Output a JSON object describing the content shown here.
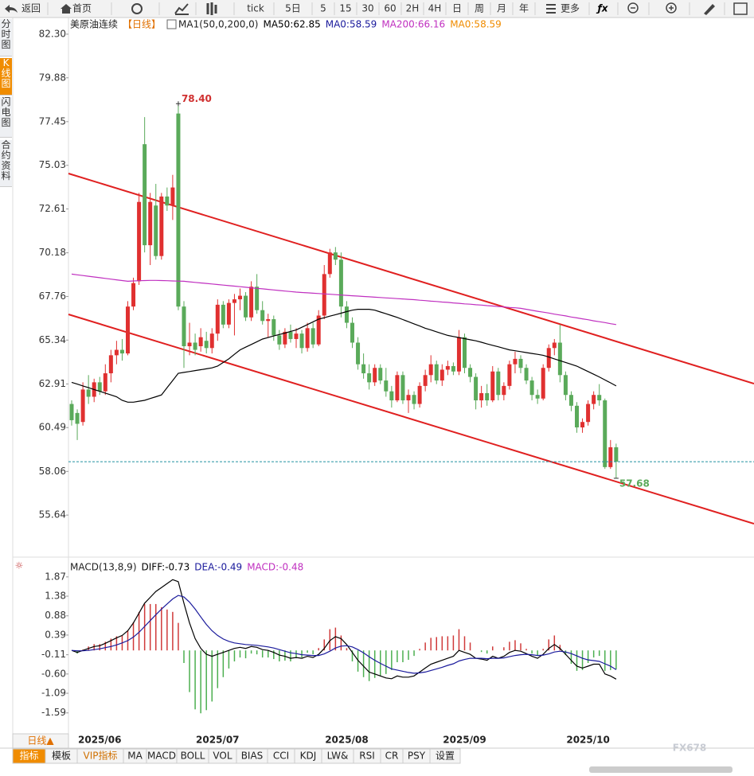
{
  "toolbar": [
    "返回",
    "首页",
    "tick",
    "5日",
    "5",
    "15",
    "30",
    "60",
    "2H",
    "4H",
    "日",
    "周",
    "月",
    "年",
    "更多"
  ],
  "side_tabs": [
    "分时图",
    "K线图",
    "闪电图",
    "合约资料"
  ],
  "period_button": "日线▲",
  "bottom_tabs": [
    "指标",
    "模板",
    "VIP指标",
    "MA",
    "MACD",
    "BOLL",
    "VOL",
    "BIAS",
    "CCI",
    "KDJ",
    "LW&",
    "RSI",
    "CR",
    "PSY",
    "设置"
  ],
  "watermark": "FX678",
  "chart_data": [
    {
      "type": "candlestick",
      "title": "美原油连续",
      "period": "【日线】",
      "indicator": "MA1(50,0,200,0)",
      "legend": [
        {
          "label": "MA50:62.85",
          "color": "#000000"
        },
        {
          "label": "MA0:58.59",
          "color": "#1a1a9c"
        },
        {
          "label": "MA200:66.16",
          "color": "#c030c0"
        },
        {
          "label": "MA0:58.59",
          "color": "#f08c00"
        }
      ],
      "up_color": "#e03030",
      "down_color": "#5aaa5a",
      "high_label": "78.40",
      "low_label": "57.68",
      "categories": [
        null,
        null,
        null,
        null,
        null,
        "2025/06",
        null,
        null,
        null,
        null,
        null,
        null,
        null,
        null,
        null,
        null,
        null,
        null,
        null,
        null,
        null,
        null,
        null,
        null,
        null,
        null,
        "2025/07",
        null,
        null,
        null,
        null,
        null,
        null,
        null,
        null,
        null,
        null,
        null,
        null,
        null,
        null,
        null,
        null,
        null,
        null,
        null,
        null,
        null,
        null,
        "2025/08",
        null,
        null,
        null,
        null,
        null,
        null,
        null,
        null,
        null,
        null,
        null,
        null,
        null,
        null,
        null,
        null,
        null,
        null,
        null,
        null,
        "2025/09",
        null,
        null,
        null,
        null,
        null,
        null,
        null,
        null,
        null,
        null,
        null,
        null,
        null,
        null,
        null,
        null,
        null,
        null,
        null,
        null,
        null,
        "2025/10",
        null,
        null,
        null,
        null,
        null
      ],
      "open": [
        61.8,
        61.3,
        60.8,
        62.6,
        62.2,
        63.0,
        62.5,
        63.5,
        64.5,
        64.8,
        64.6,
        67.2,
        68.6,
        76.2,
        70.6,
        72.8,
        70.0,
        73.3,
        72.8,
        77.9,
        67.2,
        65.0,
        65.2,
        65.0,
        65.3,
        64.9,
        65.7,
        67.3,
        66.2,
        67.4,
        67.6,
        67.8,
        66.6,
        68.3,
        67.0,
        66.4,
        66.5,
        65.6,
        65.1,
        65.8,
        65.4,
        65.7,
        64.9,
        66.0,
        65.1,
        66.7,
        69.0,
        70.2,
        69.8,
        67.2,
        66.3,
        65.2,
        64.0,
        63.5,
        63.0,
        63.8,
        63.1,
        62.5,
        62.0,
        63.4,
        62.0,
        62.3,
        61.8,
        62.8,
        63.4,
        64.0,
        63.1,
        63.7,
        63.9,
        63.6,
        65.5,
        63.8,
        63.3,
        62.0,
        62.4,
        62.0,
        63.6,
        62.3,
        62.8,
        64.0,
        64.3,
        63.8,
        63.1,
        62.3,
        62.1,
        63.8,
        64.9,
        65.2,
        63.4,
        62.3,
        61.7,
        60.5,
        60.8,
        61.8,
        62.3,
        62.0,
        58.3,
        59.4
      ],
      "high": [
        62.0,
        61.5,
        63.0,
        63.4,
        63.2,
        63.3,
        64.0,
        64.8,
        65.3,
        65.4,
        67.5,
        68.8,
        73.5,
        77.7,
        73.5,
        74.0,
        73.5,
        73.8,
        74.5,
        78.4,
        67.5,
        66.3,
        65.7,
        66.0,
        65.8,
        66.0,
        67.6,
        67.5,
        67.6,
        67.9,
        68.2,
        68.0,
        68.6,
        69.0,
        67.5,
        66.8,
        66.7,
        65.9,
        66.0,
        66.2,
        66.0,
        65.9,
        66.3,
        66.3,
        67.0,
        69.5,
        70.4,
        70.5,
        70.2,
        67.5,
        66.6,
        65.5,
        64.6,
        64.0,
        64.0,
        64.0,
        63.8,
        62.8,
        63.6,
        63.6,
        62.6,
        62.5,
        63.0,
        63.7,
        64.5,
        64.2,
        64.0,
        64.2,
        64.1,
        65.9,
        65.7,
        64.0,
        63.5,
        62.8,
        62.9,
        63.9,
        63.8,
        63.0,
        64.2,
        64.7,
        64.5,
        64.0,
        63.3,
        62.6,
        64.0,
        65.1,
        65.4,
        66.2,
        63.6,
        62.5,
        61.9,
        61.0,
        62.0,
        62.5,
        62.9,
        62.1,
        59.8,
        59.6
      ],
      "low": [
        60.6,
        59.8,
        60.6,
        61.8,
        61.9,
        62.3,
        62.3,
        63.0,
        64.0,
        64.2,
        64.5,
        67.0,
        68.4,
        70.2,
        69.5,
        69.8,
        69.8,
        72.5,
        72.0,
        67.0,
        63.8,
        64.5,
        64.5,
        64.7,
        64.6,
        64.6,
        65.3,
        66.0,
        66.0,
        65.6,
        67.0,
        66.4,
        66.4,
        66.8,
        66.2,
        65.5,
        65.3,
        64.8,
        64.9,
        65.2,
        64.9,
        64.6,
        64.7,
        64.9,
        65.0,
        66.5,
        68.8,
        69.5,
        66.6,
        66.0,
        64.9,
        63.7,
        63.2,
        62.6,
        62.8,
        62.9,
        62.2,
        61.6,
        61.9,
        61.8,
        61.3,
        61.5,
        61.6,
        62.5,
        63.0,
        62.9,
        62.8,
        63.4,
        63.4,
        63.4,
        63.5,
        63.0,
        61.5,
        61.6,
        61.7,
        61.9,
        62.0,
        62.0,
        62.6,
        63.5,
        63.5,
        62.9,
        62.0,
        61.8,
        62.0,
        63.6,
        64.5,
        63.0,
        62.0,
        61.4,
        60.2,
        60.2,
        60.6,
        61.5,
        61.7,
        58.2,
        58.2,
        57.68
      ],
      "close": [
        60.9,
        60.7,
        62.6,
        62.2,
        63.0,
        62.5,
        63.5,
        64.5,
        64.8,
        64.6,
        67.2,
        68.5,
        73.0,
        70.6,
        73.0,
        70.0,
        73.3,
        72.8,
        73.8,
        67.2,
        65.0,
        65.2,
        64.8,
        65.5,
        64.9,
        65.7,
        67.3,
        66.2,
        67.4,
        67.6,
        67.8,
        66.6,
        68.3,
        67.0,
        66.4,
        66.5,
        65.6,
        65.1,
        65.8,
        65.4,
        65.7,
        64.9,
        66.0,
        65.1,
        66.7,
        69.0,
        70.2,
        69.8,
        67.2,
        66.3,
        65.2,
        64.0,
        63.5,
        63.0,
        63.8,
        63.1,
        62.5,
        62.0,
        63.4,
        62.0,
        62.3,
        61.8,
        62.8,
        63.4,
        64.0,
        63.1,
        63.7,
        63.9,
        63.6,
        65.5,
        63.8,
        63.3,
        62.0,
        62.4,
        62.0,
        63.6,
        62.3,
        62.8,
        64.0,
        64.3,
        63.8,
        63.1,
        62.3,
        62.1,
        63.8,
        64.9,
        65.2,
        63.4,
        62.3,
        61.7,
        60.5,
        60.8,
        61.8,
        62.3,
        62.0,
        58.3,
        59.4,
        58.6
      ],
      "lines": [
        {
          "color": "#000000",
          "values": [
            63.0,
            62.9,
            62.8,
            62.7,
            62.6,
            62.5,
            62.4,
            62.3,
            62.2,
            62.0,
            61.9,
            61.9,
            61.95,
            62.0,
            62.1,
            62.2,
            62.3,
            62.7,
            63.1,
            63.5,
            63.55,
            63.6,
            63.65,
            63.7,
            63.75,
            63.8,
            63.9,
            64.1,
            64.3,
            64.55,
            64.8,
            64.95,
            65.1,
            65.25,
            65.4,
            65.48,
            65.57,
            65.65,
            65.73,
            65.82,
            65.9,
            66.05,
            66.2,
            66.35,
            66.5,
            66.58,
            66.67,
            66.75,
            66.83,
            66.92,
            67.0,
            67.05,
            67.05,
            67.05,
            67.0,
            66.9,
            66.8,
            66.7,
            66.6,
            66.48,
            66.36,
            66.24,
            66.12,
            66.0,
            65.9,
            65.8,
            65.7,
            65.6,
            65.54,
            65.48,
            65.42,
            65.36,
            65.3,
            65.22,
            65.13,
            65.05,
            64.97,
            64.88,
            64.8,
            64.75,
            64.7,
            64.65,
            64.6,
            64.55,
            64.5,
            64.4,
            64.3,
            64.2,
            64.1,
            64.0,
            63.9,
            63.75,
            63.6,
            63.45,
            63.3,
            63.13,
            62.97,
            62.8
          ]
        },
        {
          "color": "#c030c0",
          "values": [
            69.0,
            68.96,
            68.92,
            68.88,
            68.84,
            68.8,
            68.76,
            68.72,
            68.68,
            68.64,
            68.6,
            68.62,
            68.63,
            68.64,
            68.65,
            68.65,
            68.64,
            68.63,
            68.62,
            68.61,
            68.6,
            68.57,
            68.54,
            68.51,
            68.48,
            68.45,
            68.42,
            68.39,
            68.36,
            68.33,
            68.3,
            68.27,
            68.24,
            68.21,
            68.18,
            68.15,
            68.12,
            68.09,
            68.06,
            68.03,
            68.0,
            67.98,
            67.96,
            67.94,
            67.92,
            67.9,
            67.88,
            67.86,
            67.84,
            67.82,
            67.8,
            67.78,
            67.76,
            67.74,
            67.72,
            67.7,
            67.68,
            67.66,
            67.64,
            67.62,
            67.6,
            67.58,
            67.55,
            67.53,
            67.5,
            67.48,
            67.45,
            67.43,
            67.4,
            67.38,
            67.35,
            67.33,
            67.3,
            67.28,
            67.25,
            67.23,
            67.2,
            67.18,
            67.15,
            67.13,
            67.1,
            67.05,
            66.99,
            66.94,
            66.89,
            66.84,
            66.78,
            66.73,
            66.68,
            66.62,
            66.57,
            66.52,
            66.47,
            66.41,
            66.36,
            66.31,
            66.25,
            66.2
          ]
        }
      ],
      "ylim": [
        53.75,
        82.87
      ],
      "yticks": [
        {
          "value": 82.3,
          "label": "82.30"
        },
        79.88,
        77.45,
        75.03,
        72.61,
        70.18,
        67.76,
        65.34,
        62.91,
        60.49,
        58.06,
        55.64
      ]
    },
    {
      "type": "macd",
      "title": "MACD(13,8,9)",
      "legend": [
        {
          "label": "DIFF:-0.73",
          "color": "#000000"
        },
        {
          "label": "DEA:-0.49",
          "color": "#1a1a9c"
        },
        {
          "label": "MACD:-0.48",
          "color": "#c030c0"
        }
      ],
      "up_color": "#d03a3a",
      "down_color": "#4caf50",
      "diff_color": "#000000",
      "dea_color": "#1a1a9c",
      "diff": [
        0.0,
        -0.05,
        0.0,
        0.05,
        0.1,
        0.12,
        0.18,
        0.25,
        0.32,
        0.38,
        0.5,
        0.7,
        0.95,
        1.2,
        1.35,
        1.5,
        1.6,
        1.7,
        1.8,
        1.75,
        1.2,
        0.7,
        0.3,
        0.05,
        -0.1,
        -0.15,
        -0.1,
        -0.05,
        0.0,
        0.05,
        0.08,
        0.05,
        0.1,
        0.08,
        0.02,
        0.0,
        -0.05,
        -0.12,
        -0.15,
        -0.2,
        -0.18,
        -0.2,
        -0.15,
        -0.18,
        -0.1,
        0.05,
        0.25,
        0.35,
        0.3,
        0.15,
        -0.05,
        -0.25,
        -0.4,
        -0.55,
        -0.6,
        -0.65,
        -0.7,
        -0.72,
        -0.65,
        -0.68,
        -0.68,
        -0.65,
        -0.55,
        -0.45,
        -0.35,
        -0.3,
        -0.25,
        -0.2,
        -0.15,
        0.0,
        -0.05,
        -0.1,
        -0.2,
        -0.22,
        -0.25,
        -0.15,
        -0.2,
        -0.15,
        -0.05,
        0.0,
        -0.02,
        -0.08,
        -0.15,
        -0.2,
        -0.1,
        0.05,
        0.15,
        0.05,
        -0.1,
        -0.25,
        -0.4,
        -0.45,
        -0.4,
        -0.35,
        -0.35,
        -0.6,
        -0.65,
        -0.73
      ],
      "dea": [
        0.0,
        -0.01,
        -0.01,
        0.0,
        0.02,
        0.04,
        0.07,
        0.1,
        0.14,
        0.19,
        0.25,
        0.34,
        0.46,
        0.61,
        0.76,
        0.91,
        1.05,
        1.18,
        1.31,
        1.4,
        1.36,
        1.23,
        1.05,
        0.85,
        0.66,
        0.5,
        0.38,
        0.29,
        0.23,
        0.19,
        0.17,
        0.15,
        0.14,
        0.13,
        0.11,
        0.09,
        0.06,
        0.02,
        -0.02,
        -0.06,
        -0.08,
        -0.11,
        -0.12,
        -0.13,
        -0.13,
        -0.09,
        -0.02,
        0.06,
        0.11,
        0.12,
        0.09,
        0.02,
        -0.06,
        -0.16,
        -0.25,
        -0.33,
        -0.4,
        -0.47,
        -0.5,
        -0.53,
        -0.56,
        -0.58,
        -0.57,
        -0.55,
        -0.51,
        -0.47,
        -0.43,
        -0.38,
        -0.34,
        -0.27,
        -0.23,
        -0.2,
        -0.2,
        -0.2,
        -0.21,
        -0.2,
        -0.2,
        -0.19,
        -0.16,
        -0.13,
        -0.11,
        -0.1,
        -0.11,
        -0.13,
        -0.12,
        -0.09,
        -0.04,
        -0.02,
        -0.04,
        -0.08,
        -0.14,
        -0.2,
        -0.24,
        -0.26,
        -0.28,
        -0.34,
        -0.4,
        -0.49
      ],
      "hist": [
        0.0,
        -0.08,
        0.02,
        0.1,
        0.16,
        0.16,
        0.22,
        0.3,
        0.36,
        0.38,
        0.5,
        0.72,
        0.98,
        1.18,
        1.18,
        1.18,
        1.1,
        1.04,
        0.98,
        0.7,
        -0.32,
        -1.06,
        -1.5,
        -1.6,
        -1.52,
        -1.3,
        -0.96,
        -0.68,
        -0.46,
        -0.28,
        -0.18,
        -0.2,
        -0.08,
        -0.1,
        -0.18,
        -0.18,
        -0.22,
        -0.28,
        -0.26,
        -0.28,
        -0.2,
        -0.18,
        -0.06,
        -0.1,
        0.06,
        0.28,
        0.54,
        0.58,
        0.38,
        0.06,
        -0.28,
        -0.54,
        -0.68,
        -0.78,
        -0.7,
        -0.64,
        -0.6,
        -0.5,
        -0.3,
        -0.3,
        -0.24,
        -0.14,
        0.04,
        0.2,
        0.32,
        0.34,
        0.36,
        0.36,
        0.38,
        0.54,
        0.36,
        0.2,
        0.0,
        -0.04,
        -0.08,
        0.1,
        0.0,
        0.08,
        0.22,
        0.26,
        0.18,
        0.04,
        -0.08,
        -0.14,
        0.04,
        0.28,
        0.38,
        0.14,
        -0.12,
        -0.34,
        -0.52,
        -0.5,
        -0.32,
        -0.18,
        -0.14,
        -0.52,
        -0.5,
        -0.48
      ],
      "ylim": [
        -1.98,
        2.13
      ],
      "yticks": [
        1.87,
        1.38,
        0.88,
        0.39,
        -0.11,
        {
          "value": -0.6,
          "label": "-0.60"
        },
        -1.09,
        -1.59
      ]
    }
  ]
}
